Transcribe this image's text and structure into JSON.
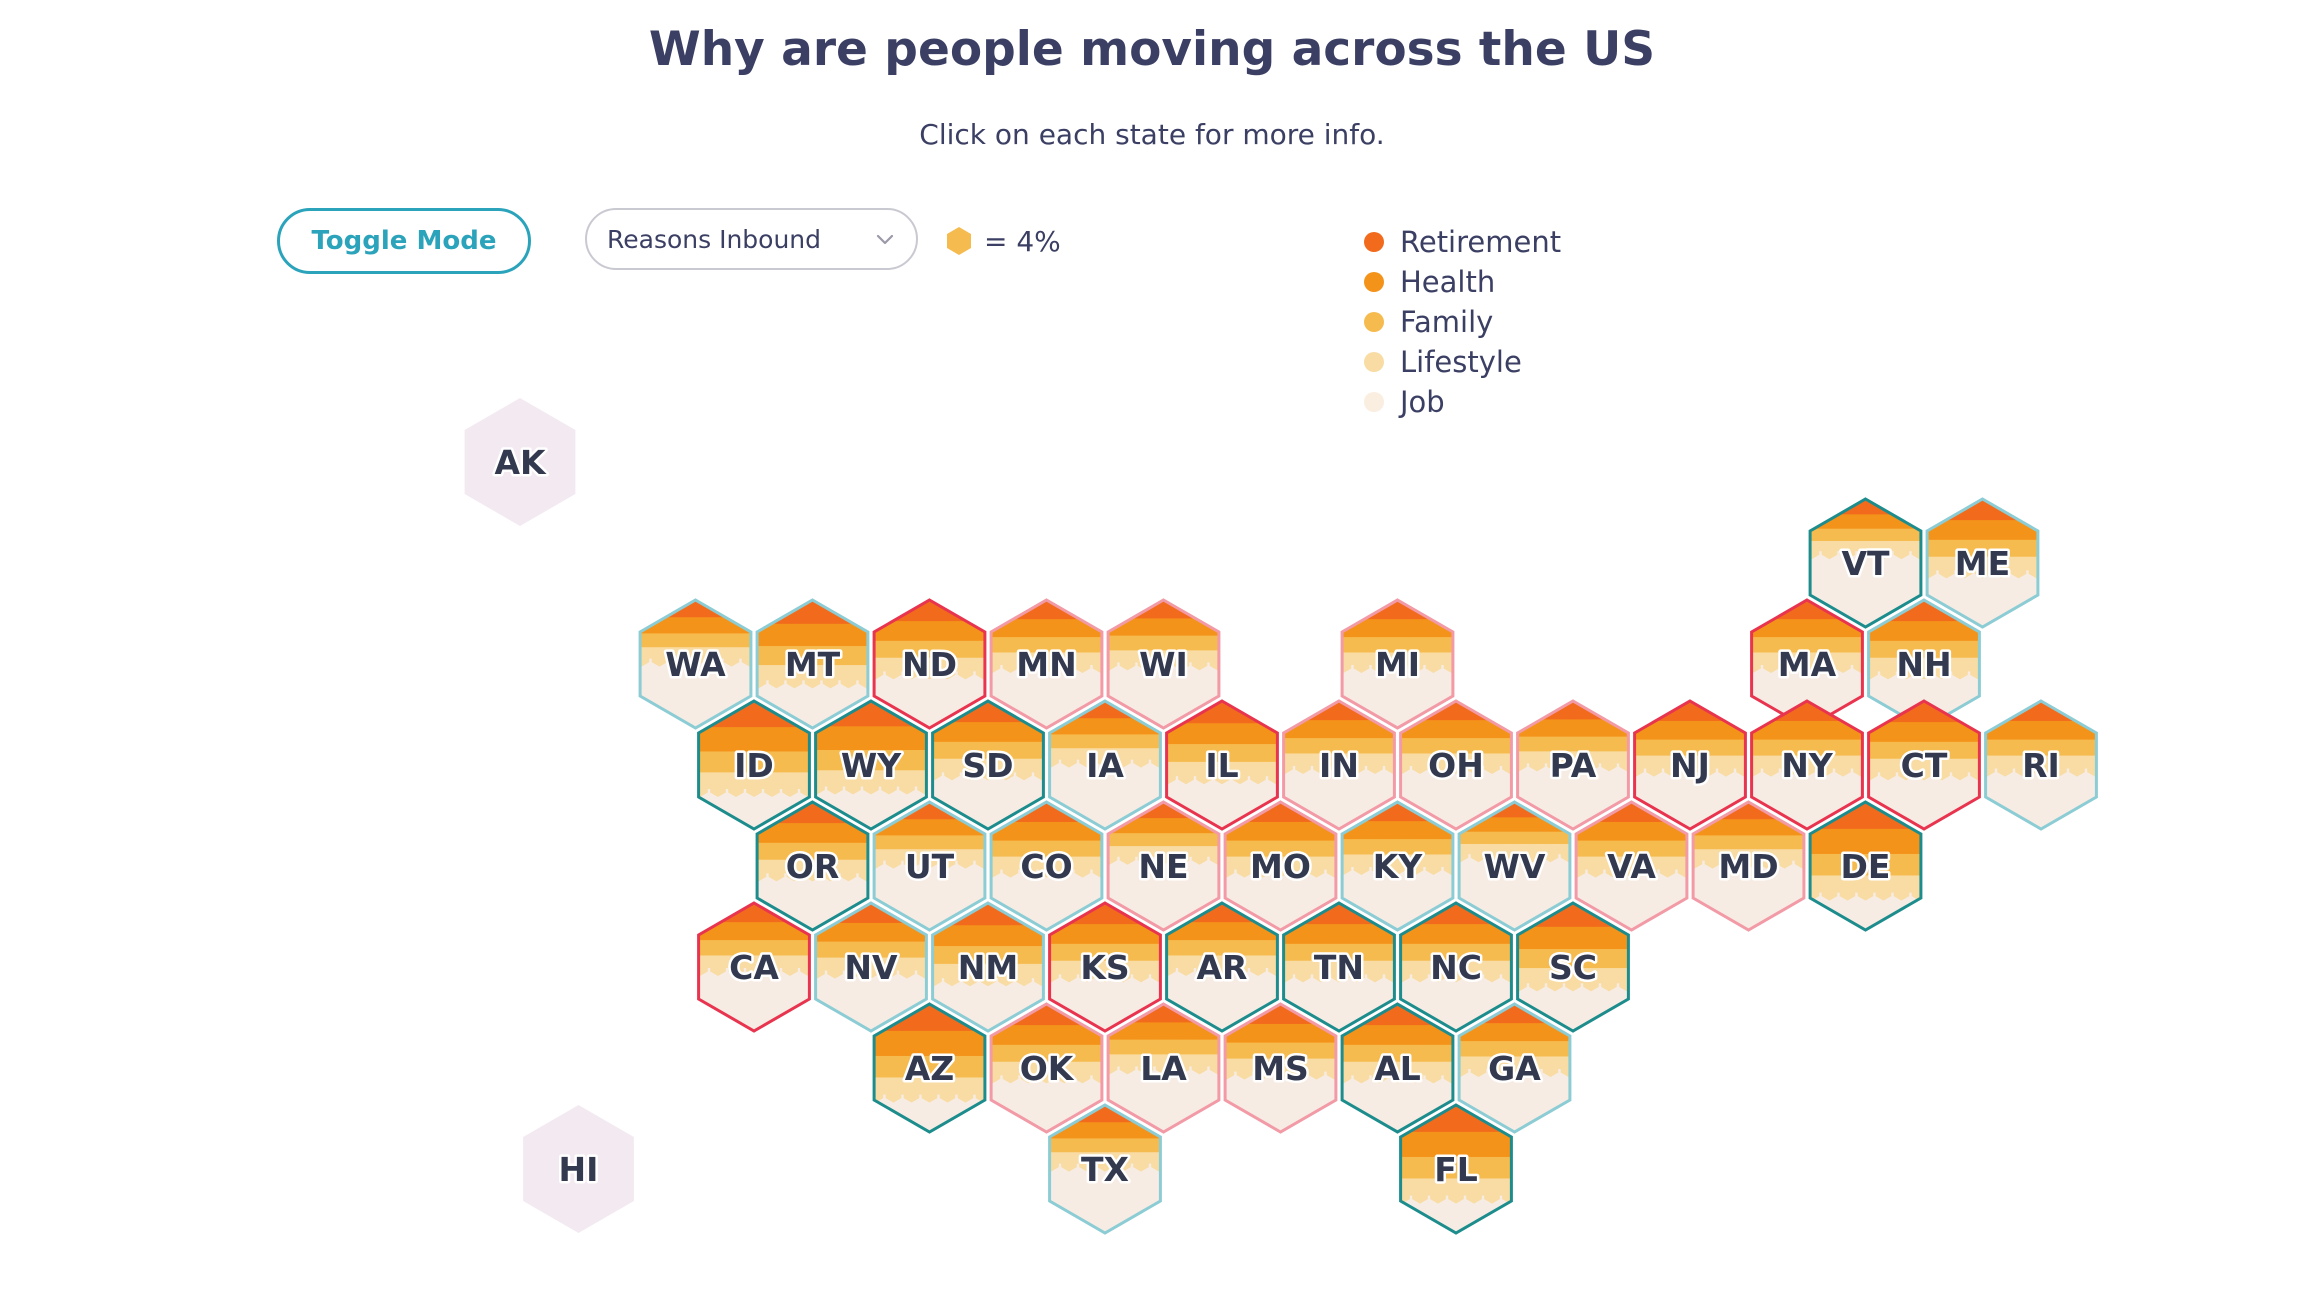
{
  "page": {
    "title": "Why are people moving across the US",
    "subtitle": "Click on each state for more info."
  },
  "controls": {
    "toggle_label": "Toggle Mode",
    "select_value": "Reasons Inbound",
    "scale_label": "= 4%"
  },
  "legend": [
    {
      "label": "Retirement",
      "color": "#f26b1d"
    },
    {
      "label": "Health",
      "color": "#f4931a"
    },
    {
      "label": "Family",
      "color": "#f6bb4e"
    },
    {
      "label": "Lifestyle",
      "color": "#f8dca4"
    },
    {
      "label": "Job",
      "color": "#faeee0"
    }
  ],
  "border_colors": {
    "teal_dark": "#1d8c8c",
    "teal_light": "#8cccd4",
    "red": "#e8344e",
    "pink": "#f29aa6",
    "inactive": "#f3eaf1"
  },
  "states": [
    {
      "abbr": "AK",
      "row": 0,
      "col": 2.5,
      "border": "none",
      "inactive": true
    },
    {
      "abbr": "VT",
      "row": 1,
      "col": 14.0,
      "border": "teal_dark",
      "fill": 0.4
    },
    {
      "abbr": "ME",
      "row": 1,
      "col": 15.0,
      "border": "teal_light",
      "fill": 0.55
    },
    {
      "abbr": "WA",
      "row": 2,
      "col": 4.0,
      "border": "teal_light",
      "fill": 0.45
    },
    {
      "abbr": "MT",
      "row": 2,
      "col": 5.0,
      "border": "teal_light",
      "fill": 0.62
    },
    {
      "abbr": "ND",
      "row": 2,
      "col": 6.0,
      "border": "red",
      "fill": 0.55
    },
    {
      "abbr": "MN",
      "row": 2,
      "col": 7.0,
      "border": "pink",
      "fill": 0.5
    },
    {
      "abbr": "WI",
      "row": 2,
      "col": 8.0,
      "border": "pink",
      "fill": 0.48
    },
    {
      "abbr": "MI",
      "row": 2,
      "col": 10.0,
      "border": "pink",
      "fill": 0.5
    },
    {
      "abbr": "MA",
      "row": 2,
      "col": 13.5,
      "border": "red",
      "fill": 0.5
    },
    {
      "abbr": "NH",
      "row": 2,
      "col": 14.5,
      "border": "teal_light",
      "fill": 0.55
    },
    {
      "abbr": "ID",
      "row": 3,
      "col": 4.5,
      "border": "teal_dark",
      "fill": 0.68
    },
    {
      "abbr": "WY",
      "row": 3,
      "col": 5.5,
      "border": "teal_dark",
      "fill": 0.66
    },
    {
      "abbr": "SD",
      "row": 3,
      "col": 6.5,
      "border": "teal_dark",
      "fill": 0.55
    },
    {
      "abbr": "IA",
      "row": 3,
      "col": 7.5,
      "border": "teal_light",
      "fill": 0.45
    },
    {
      "abbr": "IL",
      "row": 3,
      "col": 8.5,
      "border": "red",
      "fill": 0.58
    },
    {
      "abbr": "IN",
      "row": 3,
      "col": 9.5,
      "border": "pink",
      "fill": 0.5
    },
    {
      "abbr": "OH",
      "row": 3,
      "col": 10.5,
      "border": "pink",
      "fill": 0.5
    },
    {
      "abbr": "PA",
      "row": 3,
      "col": 11.5,
      "border": "pink",
      "fill": 0.48
    },
    {
      "abbr": "NJ",
      "row": 3,
      "col": 12.5,
      "border": "red",
      "fill": 0.52
    },
    {
      "abbr": "NY",
      "row": 3,
      "col": 13.5,
      "border": "red",
      "fill": 0.52
    },
    {
      "abbr": "CT",
      "row": 3,
      "col": 14.5,
      "border": "red",
      "fill": 0.55
    },
    {
      "abbr": "RI",
      "row": 3,
      "col": 15.5,
      "border": "teal_light",
      "fill": 0.52
    },
    {
      "abbr": "OR",
      "row": 4,
      "col": 5.0,
      "border": "teal_dark",
      "fill": 0.55
    },
    {
      "abbr": "UT",
      "row": 4,
      "col": 6.0,
      "border": "teal_light",
      "fill": 0.45
    },
    {
      "abbr": "CO",
      "row": 4,
      "col": 7.0,
      "border": "teal_light",
      "fill": 0.52
    },
    {
      "abbr": "NE",
      "row": 4,
      "col": 8.0,
      "border": "pink",
      "fill": 0.42
    },
    {
      "abbr": "MO",
      "row": 4,
      "col": 9.0,
      "border": "pink",
      "fill": 0.52
    },
    {
      "abbr": "KY",
      "row": 4,
      "col": 10.0,
      "border": "teal_light",
      "fill": 0.5
    },
    {
      "abbr": "WV",
      "row": 4,
      "col": 11.0,
      "border": "teal_light",
      "fill": 0.4
    },
    {
      "abbr": "VA",
      "row": 4,
      "col": 12.0,
      "border": "pink",
      "fill": 0.52
    },
    {
      "abbr": "MD",
      "row": 4,
      "col": 13.0,
      "border": "pink",
      "fill": 0.45
    },
    {
      "abbr": "DE",
      "row": 4,
      "col": 14.0,
      "border": "teal_dark",
      "fill": 0.7
    },
    {
      "abbr": "CA",
      "row": 5,
      "col": 4.5,
      "border": "red",
      "fill": 0.5
    },
    {
      "abbr": "NV",
      "row": 5,
      "col": 5.5,
      "border": "teal_light",
      "fill": 0.52
    },
    {
      "abbr": "NM",
      "row": 5,
      "col": 6.5,
      "border": "teal_light",
      "fill": 0.58
    },
    {
      "abbr": "KS",
      "row": 5,
      "col": 7.5,
      "border": "red",
      "fill": 0.55
    },
    {
      "abbr": "AR",
      "row": 5,
      "col": 8.5,
      "border": "teal_dark",
      "fill": 0.5
    },
    {
      "abbr": "TN",
      "row": 5,
      "col": 9.5,
      "border": "teal_dark",
      "fill": 0.55
    },
    {
      "abbr": "NC",
      "row": 5,
      "col": 10.5,
      "border": "teal_dark",
      "fill": 0.55
    },
    {
      "abbr": "SC",
      "row": 5,
      "col": 11.5,
      "border": "teal_dark",
      "fill": 0.62
    },
    {
      "abbr": "AZ",
      "row": 6,
      "col": 6.0,
      "border": "teal_dark",
      "fill": 0.7
    },
    {
      "abbr": "OK",
      "row": 6,
      "col": 7.0,
      "border": "pink",
      "fill": 0.55
    },
    {
      "abbr": "LA",
      "row": 6,
      "col": 8.0,
      "border": "pink",
      "fill": 0.48
    },
    {
      "abbr": "MS",
      "row": 6,
      "col": 9.0,
      "border": "pink",
      "fill": 0.52
    },
    {
      "abbr": "AL",
      "row": 6,
      "col": 10.0,
      "border": "teal_dark",
      "fill": 0.55
    },
    {
      "abbr": "GA",
      "row": 6,
      "col": 11.0,
      "border": "teal_light",
      "fill": 0.5
    },
    {
      "abbr": "HI",
      "row": 7,
      "col": 3.0,
      "border": "none",
      "inactive": true
    },
    {
      "abbr": "TX",
      "row": 7,
      "col": 7.5,
      "border": "teal_light",
      "fill": 0.45
    },
    {
      "abbr": "FL",
      "row": 7,
      "col": 10.5,
      "border": "teal_dark",
      "fill": 0.7
    }
  ]
}
